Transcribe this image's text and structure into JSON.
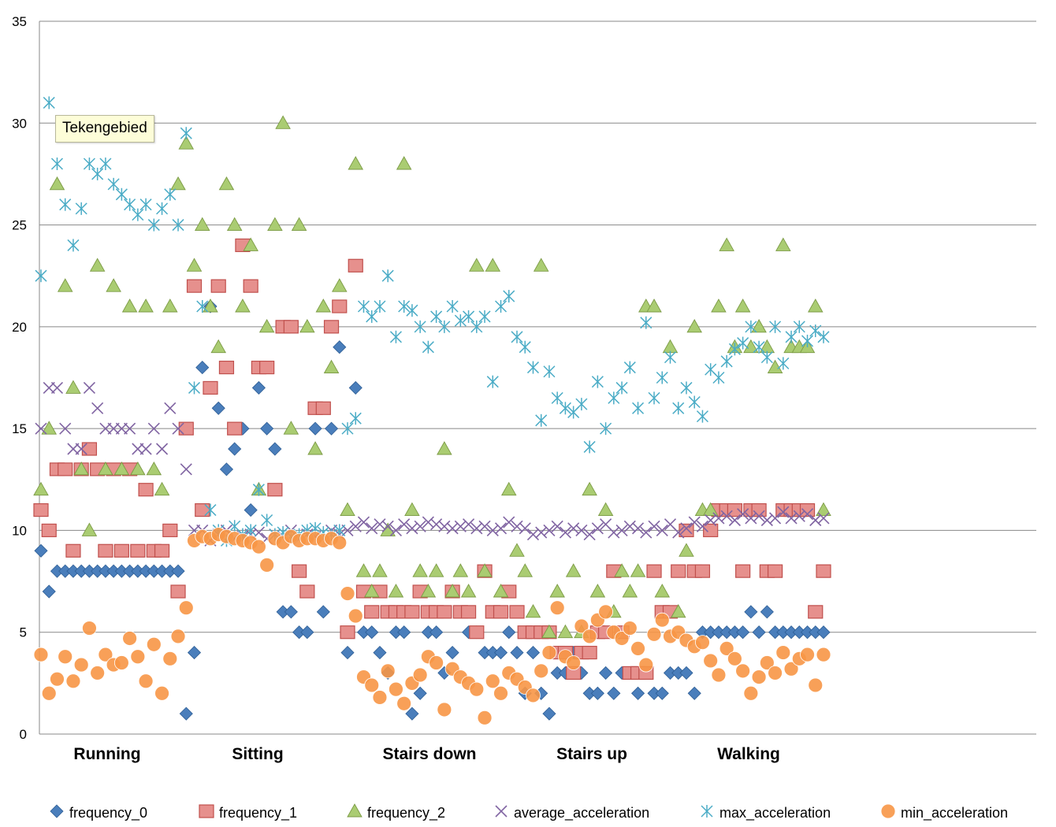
{
  "tooltip": {
    "text": "Tekengebied"
  },
  "chart_data": {
    "type": "scatter",
    "title": "",
    "xlabel": "",
    "ylabel": "",
    "ylim": [
      0,
      35
    ],
    "yticks": [
      "0",
      "5",
      "10",
      "15",
      "20",
      "25",
      "30",
      "35"
    ],
    "categories": [
      "Running",
      "Sitting",
      "Stairs down",
      "Stairs up",
      "Walking"
    ],
    "x_range": [
      0,
      100
    ],
    "grid": true,
    "legend_position": "bottom",
    "series": [
      {
        "name": "frequency_0",
        "color": "#4a7ebb",
        "marker": "diamond",
        "x": [
          1,
          2,
          3,
          4,
          5,
          6,
          7,
          8,
          9,
          10,
          11,
          12,
          13,
          14,
          15,
          16,
          17,
          18,
          19,
          20,
          21,
          22,
          23,
          24,
          25,
          26,
          27,
          28,
          29,
          30,
          31,
          32,
          33,
          34,
          35,
          36,
          37,
          38,
          39,
          40,
          41,
          42,
          43,
          44,
          45,
          46,
          47,
          48,
          49,
          50,
          51,
          52,
          53,
          54,
          55,
          56,
          57,
          58,
          59,
          60,
          61,
          62,
          63,
          64,
          65,
          66,
          67,
          68,
          69,
          70,
          71,
          72,
          73,
          74,
          75,
          76,
          77,
          78,
          79,
          80,
          81,
          82,
          83,
          84,
          85,
          86,
          87,
          88,
          89,
          90,
          91,
          92,
          93,
          94,
          95,
          96,
          97,
          98
        ],
        "y": [
          9,
          7,
          8,
          8,
          8,
          8,
          8,
          8,
          8,
          8,
          8,
          8,
          8,
          8,
          8,
          8,
          8,
          8,
          1,
          4,
          18,
          21,
          16,
          13,
          14,
          15,
          11,
          17,
          15,
          14,
          6,
          6,
          5,
          5,
          15,
          6,
          15,
          19,
          4,
          17,
          5,
          5,
          4,
          3,
          5,
          5,
          1,
          2,
          5,
          5,
          3,
          4,
          6,
          5,
          5,
          4,
          4,
          4,
          5,
          4,
          2,
          4,
          2,
          1,
          3,
          3,
          4,
          3,
          2,
          2,
          3,
          2,
          3,
          3,
          2,
          3,
          2,
          2,
          3,
          3,
          3,
          2,
          5,
          5,
          5,
          5,
          5,
          5,
          6,
          5,
          6,
          5,
          5,
          5,
          5,
          5,
          5,
          5
        ]
      },
      {
        "name": "frequency_1",
        "color": "#c0504d",
        "marker": "square",
        "x": [
          1,
          2,
          3,
          4,
          5,
          6,
          7,
          8,
          9,
          10,
          11,
          12,
          13,
          14,
          15,
          16,
          17,
          18,
          19,
          20,
          21,
          22,
          23,
          24,
          25,
          26,
          27,
          28,
          29,
          30,
          31,
          32,
          33,
          34,
          35,
          36,
          37,
          38,
          39,
          40,
          41,
          42,
          43,
          44,
          45,
          46,
          47,
          48,
          49,
          50,
          51,
          52,
          53,
          54,
          55,
          56,
          57,
          58,
          59,
          60,
          61,
          62,
          63,
          64,
          65,
          66,
          67,
          68,
          69,
          70,
          71,
          72,
          73,
          74,
          75,
          76,
          77,
          78,
          79,
          80,
          81,
          82,
          83,
          84,
          85,
          86,
          87,
          88,
          89,
          90,
          91,
          92,
          93,
          94,
          95,
          96,
          97,
          98
        ],
        "y": [
          11,
          10,
          13,
          13,
          9,
          13,
          14,
          13,
          9,
          13,
          9,
          13,
          9,
          12,
          9,
          9,
          10,
          7,
          15,
          22,
          11,
          17,
          22,
          18,
          15,
          24,
          22,
          18,
          18,
          12,
          20,
          20,
          8,
          7,
          16,
          16,
          20,
          21,
          5,
          23,
          7,
          6,
          7,
          6,
          6,
          6,
          6,
          7,
          6,
          6,
          6,
          7,
          6,
          6,
          5,
          8,
          6,
          6,
          7,
          6,
          5,
          5,
          5,
          5,
          4,
          4,
          3,
          4,
          4,
          5,
          5,
          8,
          5,
          3,
          3,
          3,
          8,
          6,
          6,
          8,
          10,
          8,
          8,
          10,
          11,
          11,
          11,
          8,
          11,
          11,
          8,
          8,
          11,
          11,
          11,
          11,
          6,
          8
        ]
      },
      {
        "name": "frequency_2",
        "color": "#9bbb59",
        "marker": "triangle",
        "x": [
          1,
          2,
          3,
          4,
          5,
          6,
          7,
          8,
          9,
          10,
          11,
          12,
          13,
          14,
          15,
          16,
          17,
          18,
          19,
          20,
          21,
          22,
          23,
          24,
          25,
          26,
          27,
          28,
          29,
          30,
          31,
          32,
          33,
          34,
          35,
          36,
          37,
          38,
          39,
          40,
          41,
          42,
          43,
          44,
          45,
          46,
          47,
          48,
          49,
          50,
          51,
          52,
          53,
          54,
          55,
          56,
          57,
          58,
          59,
          60,
          61,
          62,
          63,
          64,
          65,
          66,
          67,
          68,
          69,
          70,
          71,
          72,
          73,
          74,
          75,
          76,
          77,
          78,
          79,
          80,
          81,
          82,
          83,
          84,
          85,
          86,
          87,
          88,
          89,
          90,
          91,
          92,
          93,
          94,
          95,
          96,
          97,
          98
        ],
        "y": [
          12,
          15,
          27,
          22,
          17,
          13,
          10,
          23,
          13,
          22,
          13,
          21,
          13,
          21,
          13,
          12,
          21,
          27,
          29,
          23,
          25,
          21,
          19,
          27,
          25,
          21,
          24,
          12,
          20,
          25,
          30,
          15,
          25,
          20,
          14,
          21,
          18,
          22,
          11,
          28,
          8,
          7,
          8,
          10,
          7,
          28,
          11,
          8,
          7,
          8,
          14,
          7,
          8,
          7,
          23,
          8,
          23,
          7,
          12,
          9,
          8,
          6,
          23,
          5,
          7,
          5,
          8,
          5,
          12,
          7,
          11,
          6,
          8,
          7,
          8,
          21,
          21,
          7,
          19,
          6,
          9,
          20,
          11,
          11,
          21,
          24,
          19,
          21,
          19,
          20,
          19,
          18,
          24,
          19,
          19,
          19,
          21,
          11
        ]
      },
      {
        "name": "average_acceleration",
        "color": "#8064a2",
        "marker": "x",
        "x": [
          1,
          2,
          3,
          4,
          5,
          6,
          7,
          8,
          9,
          10,
          11,
          12,
          13,
          14,
          15,
          16,
          17,
          18,
          19,
          20,
          21,
          22,
          23,
          24,
          25,
          26,
          27,
          28,
          29,
          30,
          31,
          32,
          33,
          34,
          35,
          36,
          37,
          38,
          39,
          40,
          41,
          42,
          43,
          44,
          45,
          46,
          47,
          48,
          49,
          50,
          51,
          52,
          53,
          54,
          55,
          56,
          57,
          58,
          59,
          60,
          61,
          62,
          63,
          64,
          65,
          66,
          67,
          68,
          69,
          70,
          71,
          72,
          73,
          74,
          75,
          76,
          77,
          78,
          79,
          80,
          81,
          82,
          83,
          84,
          85,
          86,
          87,
          88,
          89,
          90,
          91,
          92,
          93,
          94,
          95,
          96,
          97,
          98
        ],
        "y": [
          15,
          17,
          17,
          15,
          14,
          14,
          17,
          16,
          15,
          15,
          15,
          15,
          14,
          14,
          15,
          14,
          16,
          15,
          13,
          10,
          10,
          9.5,
          9.8,
          10,
          9.6,
          9.7,
          9.8,
          9.9,
          9.6,
          9.8,
          9.7,
          10,
          9.6,
          9.8,
          9.7,
          9.6,
          10,
          9.8,
          10,
          10.2,
          10.4,
          10.1,
          10.3,
          10.2,
          10,
          10.3,
          10.1,
          10.2,
          10.4,
          10.3,
          10.2,
          10.1,
          10.2,
          10.3,
          10.1,
          10.2,
          10,
          10.1,
          10.4,
          10.2,
          10.1,
          9.8,
          9.9,
          10,
          10.2,
          9.9,
          10.1,
          10,
          9.8,
          10.1,
          10.3,
          9.9,
          10,
          10.2,
          10.1,
          9.9,
          10.2,
          10,
          10.3,
          9.9,
          10.1,
          10.4,
          10.2,
          10.5,
          10.6,
          10.7,
          10.5,
          10.8,
          10.6,
          10.7,
          10.5,
          10.6,
          10.9,
          10.6,
          10.7,
          10.8,
          10.5,
          10.6
        ]
      },
      {
        "name": "max_acceleration",
        "color": "#4bacc6",
        "marker": "star",
        "x": [
          1,
          2,
          3,
          4,
          5,
          6,
          7,
          8,
          9,
          10,
          11,
          12,
          13,
          14,
          15,
          16,
          17,
          18,
          19,
          20,
          21,
          22,
          23,
          24,
          25,
          26,
          27,
          28,
          29,
          30,
          31,
          32,
          33,
          34,
          35,
          36,
          37,
          38,
          39,
          40,
          41,
          42,
          43,
          44,
          45,
          46,
          47,
          48,
          49,
          50,
          51,
          52,
          53,
          54,
          55,
          56,
          57,
          58,
          59,
          60,
          61,
          62,
          63,
          64,
          65,
          66,
          67,
          68,
          69,
          70,
          71,
          72,
          73,
          74,
          75,
          76,
          77,
          78,
          79,
          80,
          81,
          82,
          83,
          84,
          85,
          86,
          87,
          88,
          89,
          90,
          91,
          92,
          93,
          94,
          95,
          96,
          97,
          98
        ],
        "y": [
          22.5,
          31,
          28,
          26,
          24,
          25.8,
          28,
          27.5,
          28,
          27,
          26.5,
          26,
          25.5,
          26,
          25,
          25.8,
          26.5,
          25,
          29.5,
          17,
          21,
          11,
          10,
          9.5,
          10.2,
          9.8,
          10,
          12,
          10.5,
          9.8,
          9.9,
          9.7,
          9.8,
          10,
          10.1,
          9.9,
          9.8,
          10,
          15,
          15.5,
          21,
          20.5,
          21,
          22.5,
          19.5,
          21,
          20.8,
          20,
          19,
          20.5,
          20,
          21,
          20.3,
          20.5,
          20,
          20.5,
          17.3,
          21,
          21.5,
          19.5,
          19,
          18,
          15.4,
          17.8,
          16.5,
          16,
          15.8,
          16.2,
          14.1,
          17.3,
          15,
          16.5,
          17,
          18,
          16,
          20.2,
          16.5,
          17.5,
          18.5,
          16,
          17,
          16.3,
          15.6,
          17.9,
          17.5,
          18.3,
          18.9,
          19.2,
          20,
          19,
          18.5,
          20,
          18.2,
          19.5,
          20,
          19.3,
          19.8,
          19.5
        ]
      },
      {
        "name": "min_acceleration",
        "color": "#f79646",
        "marker": "circle",
        "x": [
          1,
          2,
          3,
          4,
          5,
          6,
          7,
          8,
          9,
          10,
          11,
          12,
          13,
          14,
          15,
          16,
          17,
          18,
          19,
          20,
          21,
          22,
          23,
          24,
          25,
          26,
          27,
          28,
          29,
          30,
          31,
          32,
          33,
          34,
          35,
          36,
          37,
          38,
          39,
          40,
          41,
          42,
          43,
          44,
          45,
          46,
          47,
          48,
          49,
          50,
          51,
          52,
          53,
          54,
          55,
          56,
          57,
          58,
          59,
          60,
          61,
          62,
          63,
          64,
          65,
          66,
          67,
          68,
          69,
          70,
          71,
          72,
          73,
          74,
          75,
          76,
          77,
          78,
          79,
          80,
          81,
          82,
          83,
          84,
          85,
          86,
          87,
          88,
          89,
          90,
          91,
          92,
          93,
          94,
          95,
          96,
          97,
          98
        ],
        "y": [
          3.9,
          2,
          2.7,
          3.8,
          2.6,
          3.4,
          5.2,
          3.0,
          3.9,
          3.4,
          3.5,
          4.7,
          3.8,
          2.6,
          4.4,
          2,
          3.7,
          4.8,
          6.2,
          9.5,
          9.7,
          9.6,
          9.8,
          9.7,
          9.6,
          9.5,
          9.4,
          9.2,
          8.3,
          9.6,
          9.4,
          9.7,
          9.5,
          9.6,
          9.6,
          9.5,
          9.6,
          9.4,
          6.9,
          5.8,
          2.8,
          2.4,
          1.8,
          3.1,
          2.2,
          1.5,
          2.5,
          2.9,
          3.8,
          3.5,
          1.2,
          3.2,
          2.8,
          2.5,
          2.2,
          0.8,
          2.6,
          2.0,
          3.0,
          2.7,
          2.3,
          1.9,
          3.1,
          4.0,
          6.2,
          3.8,
          3.5,
          5.3,
          4.8,
          5.6,
          6.0,
          5.0,
          4.7,
          5.2,
          4.2,
          3.4,
          4.9,
          5.6,
          4.8,
          5.0,
          4.6,
          4.3,
          4.5,
          3.6,
          2.9,
          4.2,
          3.7,
          3.1,
          2.0,
          2.8,
          3.5,
          3.0,
          4.0,
          3.2,
          3.7,
          3.9,
          2.4,
          3.9
        ]
      }
    ]
  }
}
